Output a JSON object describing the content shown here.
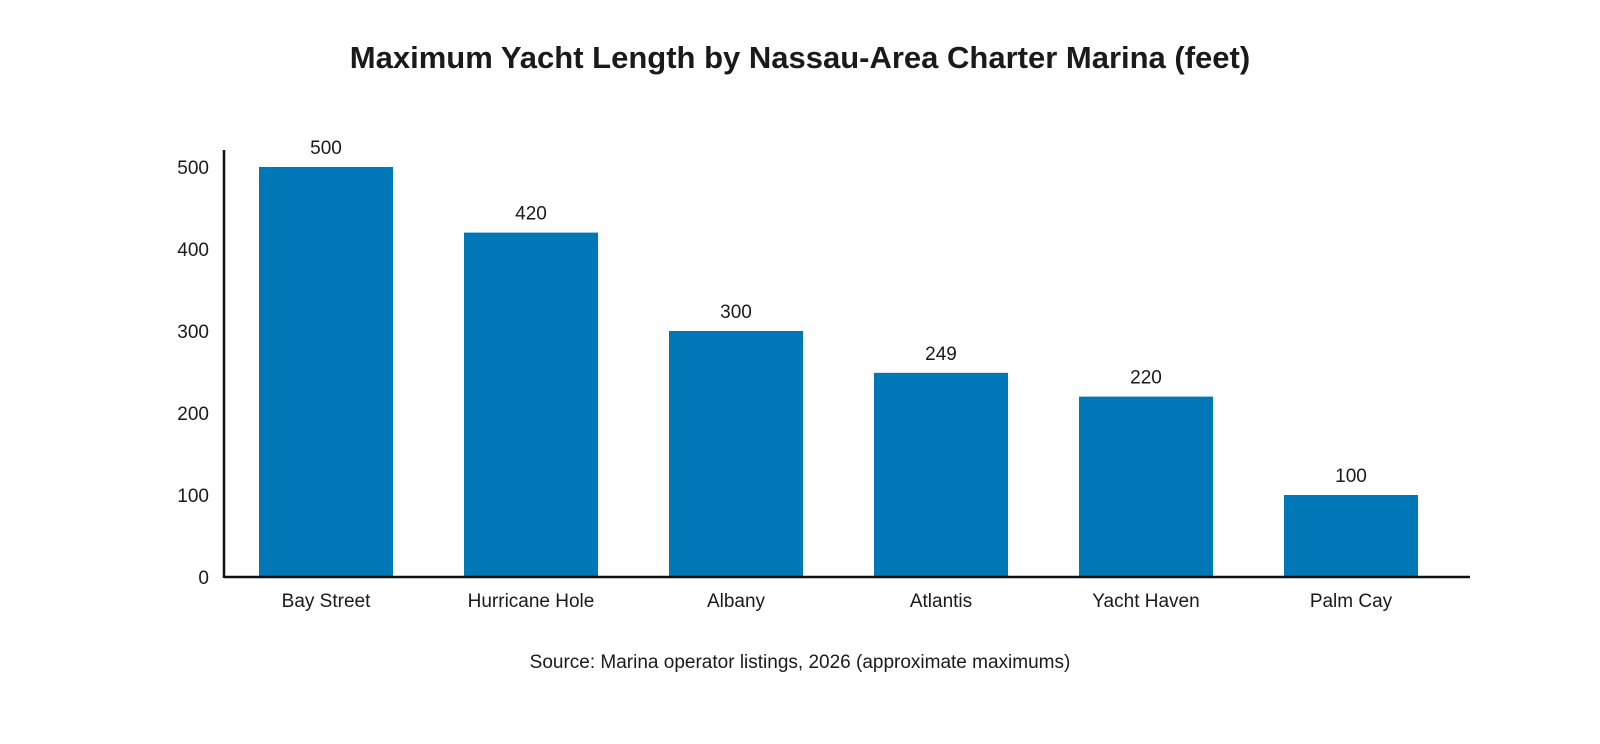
{
  "chart_data": {
    "type": "bar",
    "title": "Maximum Yacht Length by Nassau-Area Charter Marina (feet)",
    "source": "Source: Marina operator listings, 2026 (approximate maximums)",
    "xlabel": "",
    "ylabel": "",
    "categories": [
      "Bay Street",
      "Hurricane Hole",
      "Albany",
      "Atlantis",
      "Yacht Haven",
      "Palm Cay"
    ],
    "values": [
      500,
      420,
      300,
      249,
      220,
      100
    ],
    "data_labels": [
      "500",
      "420",
      "300",
      "249",
      "220",
      "100"
    ],
    "ylim": [
      0,
      500
    ],
    "yticks": [
      0,
      100,
      200,
      300,
      400,
      500
    ],
    "ytick_labels": [
      "0",
      "100",
      "200",
      "300",
      "400",
      "500"
    ],
    "bar_color": "#0077b6",
    "axis_color": "#111111",
    "grid": false,
    "legend": "none"
  }
}
